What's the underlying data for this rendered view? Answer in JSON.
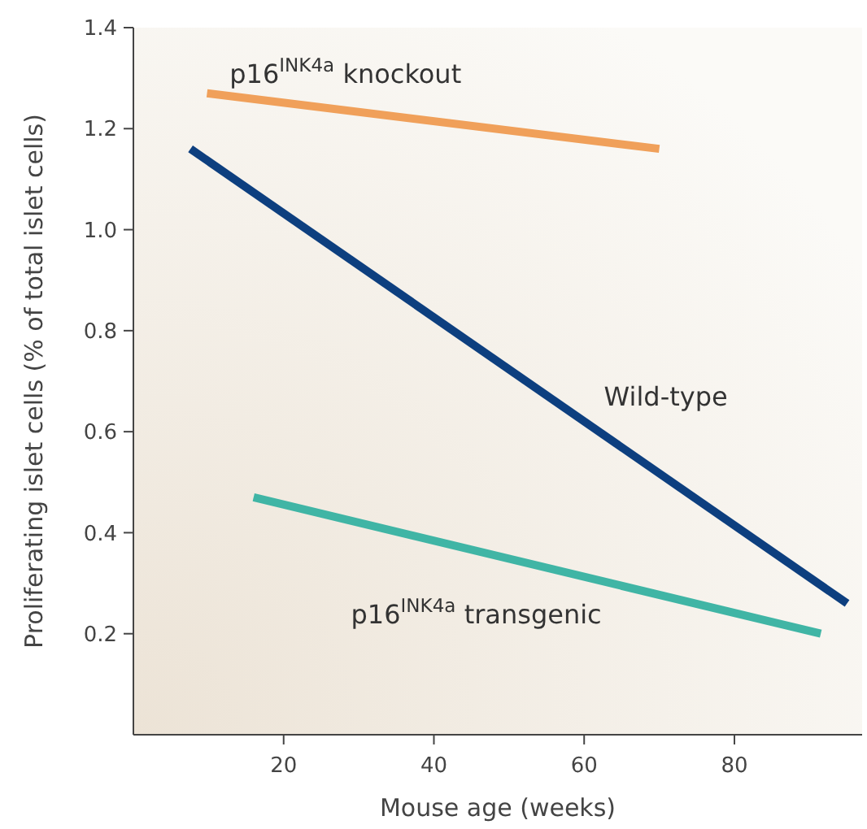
{
  "chart_data": {
    "type": "line",
    "xlabel": "Mouse age (weeks)",
    "ylabel": "Proliferating islet cells (% of total islet cells)",
    "xlim": [
      0,
      97
    ],
    "ylim": [
      0,
      1.4
    ],
    "xticks": [
      20,
      40,
      60,
      80
    ],
    "yticks": [
      {
        "value": 0.2,
        "label": "0.2"
      },
      {
        "value": 0.4,
        "label": "0.4"
      },
      {
        "value": 0.6,
        "label": "0.6"
      },
      {
        "value": 0.8,
        "label": "0.8"
      },
      {
        "value": 1.0,
        "label": "1.0"
      },
      {
        "value": 1.2,
        "label": "1.2"
      },
      {
        "value": 1.4,
        "label": "1.4"
      }
    ],
    "grid": false,
    "line_style": "solid",
    "series": [
      {
        "name": "p16$^{INK4a}$ knockout",
        "color": "#f0a05a",
        "x": [
          9.8,
          70
        ],
        "values": [
          1.27,
          1.16
        ]
      },
      {
        "name": "Wild-type",
        "color": "#0d3f7f",
        "x": [
          7.6,
          95
        ],
        "values": [
          1.16,
          0.26
        ]
      },
      {
        "name": "p16$^{INK4a}$ transgenic",
        "color": "#40b5a5",
        "x": [
          16,
          91.5
        ],
        "values": [
          0.47,
          0.2
        ]
      }
    ]
  }
}
